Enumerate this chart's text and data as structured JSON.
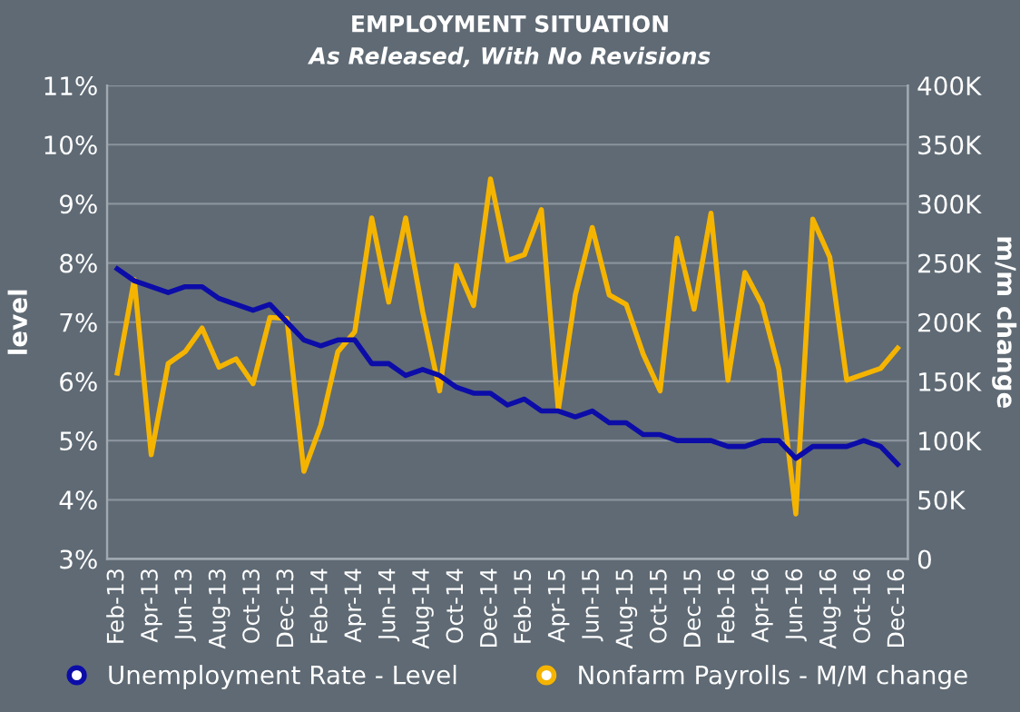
{
  "chart_data": {
    "type": "line",
    "title": "EMPLOYMENT SITUATION",
    "subtitle": "As Released, With No Revisions",
    "ylabel": "level",
    "y2label": "m/m change",
    "categories": [
      "Feb-13",
      null,
      "Apr-13",
      null,
      "Jun-13",
      null,
      "Aug-13",
      null,
      "Oct-13",
      null,
      "Dec-13",
      null,
      "Feb-14",
      null,
      "Apr-14",
      null,
      "Jun-14",
      null,
      "Aug-14",
      null,
      "Oct-14",
      null,
      "Dec-14",
      null,
      "Feb-15",
      null,
      "Apr-15",
      null,
      "Jun-15",
      null,
      "Aug-15",
      null,
      "Oct-15",
      null,
      "Dec-15",
      null,
      "Feb-16",
      null,
      "Apr-16",
      null,
      "Jun-16",
      null,
      "Aug-16",
      null,
      "Oct-16",
      null,
      "Dec-16"
    ],
    "series": [
      {
        "name": "Unemployment Rate - Level",
        "color": "#0c0ca8",
        "values": [
          7.9,
          7.7,
          7.6,
          7.5,
          7.6,
          7.6,
          7.4,
          7.3,
          7.2,
          7.3,
          7.0,
          6.7,
          6.6,
          6.7,
          6.7,
          6.3,
          6.3,
          6.1,
          6.2,
          6.1,
          5.9,
          5.8,
          5.8,
          5.6,
          5.7,
          5.5,
          5.5,
          5.4,
          5.5,
          5.3,
          5.3,
          5.1,
          5.1,
          5.0,
          5.0,
          5.0,
          4.9,
          4.9,
          5.0,
          5.0,
          4.7,
          4.9,
          4.9,
          4.9,
          5.0,
          4.9,
          4.6
        ]
      },
      {
        "name": "Nonfarm Payrolls - M/M change",
        "color": "#f5b400",
        "axis": "y2",
        "values": [
          157,
          236,
          88,
          165,
          175,
          195,
          162,
          169,
          148,
          204,
          203,
          74,
          113,
          175,
          192,
          288,
          217,
          288,
          209,
          142,
          248,
          214,
          321,
          252,
          257,
          295,
          126,
          223,
          280,
          223,
          215,
          173,
          142,
          271,
          211,
          292,
          151,
          242,
          215,
          160,
          38,
          287,
          255,
          151,
          156,
          161,
          178
        ]
      }
    ],
    "ylim": [
      3,
      11
    ],
    "yticks": [
      {
        "value": 3,
        "label": "3%"
      },
      {
        "value": 4,
        "label": "4%"
      },
      {
        "value": 5,
        "label": "5%"
      },
      {
        "value": 6,
        "label": "6%"
      },
      {
        "value": 7,
        "label": "7%"
      },
      {
        "value": 8,
        "label": "8%"
      },
      {
        "value": 9,
        "label": "9%"
      },
      {
        "value": 10,
        "label": "10%"
      },
      {
        "value": 11,
        "label": "11%"
      }
    ],
    "y2lim": [
      0,
      400
    ],
    "y2ticks": [
      0,
      {
        "value": 50,
        "label": "50K"
      },
      {
        "value": 100,
        "label": "100K"
      },
      {
        "value": 150,
        "label": "150K"
      },
      {
        "value": 200,
        "label": "200K"
      },
      {
        "value": 250,
        "label": "250K"
      },
      {
        "value": 300,
        "label": "300K"
      },
      {
        "value": 350,
        "label": "350K"
      },
      {
        "value": 400,
        "label": "400K"
      }
    ],
    "grid": "y",
    "legend": "bottom"
  }
}
